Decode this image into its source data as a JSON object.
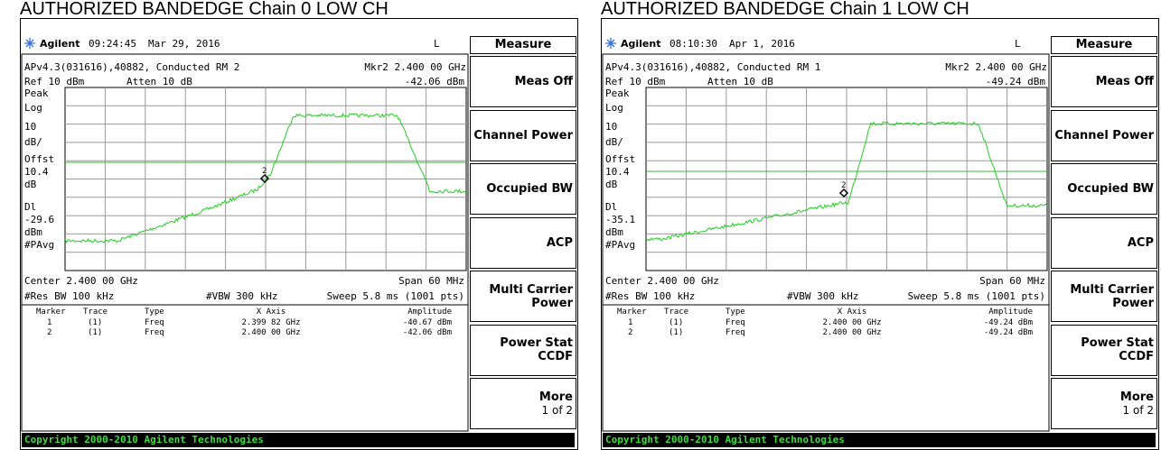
{
  "panels": [
    {
      "title": "AUTHORIZED BANDEDGE Chain 0 LOW CH",
      "header": {
        "brand": "Agilent",
        "time": "09:24:45",
        "date": "Mar 29, 2016",
        "flag": "L"
      },
      "menu_title": "Measure",
      "info": {
        "setup": "APv4.3(031616),40882, Conducted RM 2",
        "marker": "Mkr2  2.400 00 GHz",
        "ref": "Ref 10 dBm",
        "atten": "Atten 10 dB",
        "marker_amplitude": "-42.06 dBm"
      },
      "left_labels": [
        "Peak",
        "Log",
        "10",
        "dB/",
        "Offst",
        "10.4",
        "dB",
        "Dl",
        "-29.6",
        "dBm",
        "#PAvg"
      ],
      "center": "Center 2.400 00 GHz",
      "span": "Span 60 MHz",
      "res_bw": "#Res BW 100 kHz",
      "vbw": "#VBW 300 kHz",
      "sweep": "Sweep 5.8 ms (1001 pts)",
      "marker_table": {
        "columns": [
          "Marker",
          "Trace",
          "Type",
          "X Axis",
          "Amplitude"
        ],
        "rows": [
          [
            "1",
            "(1)",
            "Freq",
            "2.399 82 GHz",
            "-40.67 dBm"
          ],
          [
            "2",
            "(1)",
            "Freq",
            "2.400 00 GHz",
            "-42.06 dBm"
          ]
        ]
      },
      "softkeys": [
        [
          "Meas Off"
        ],
        [
          "Channel Power"
        ],
        [
          "Occupied BW"
        ],
        [
          "ACP"
        ],
        [
          "Multi Carrier",
          "Power"
        ],
        [
          "Power Stat",
          "CCDF"
        ],
        [
          "More",
          "1 of 2"
        ]
      ],
      "copyright": "Copyright 2000-2010 Agilent Technologies"
    },
    {
      "title": "AUTHORIZED BANDEDGE Chain 1 LOW CH",
      "header": {
        "brand": "Agilent",
        "time": "08:10:30",
        "date": "Apr 1, 2016",
        "flag": "L"
      },
      "menu_title": "Measure",
      "info": {
        "setup": "APv4.3(031616),40882, Conducted RM 1",
        "marker": "Mkr2  2.400 00 GHz",
        "ref": "Ref 10 dBm",
        "atten": "Atten 10 dB",
        "marker_amplitude": "-49.24 dBm"
      },
      "left_labels": [
        "Peak",
        "Log",
        "10",
        "dB/",
        "Offst",
        "10.4",
        "dB",
        "Dl",
        "-35.1",
        "dBm",
        "#PAvg"
      ],
      "center": "Center 2.400 00 GHz",
      "span": "Span 60 MHz",
      "res_bw": "#Res BW 100 kHz",
      "vbw": "#VBW 300 kHz",
      "sweep": "Sweep 5.8 ms (1001 pts)",
      "marker_table": {
        "columns": [
          "Marker",
          "Trace",
          "Type",
          "X Axis",
          "Amplitude"
        ],
        "rows": [
          [
            "1",
            "(1)",
            "Freq",
            "2.400 00 GHz",
            "-49.24 dBm"
          ],
          [
            "2",
            "(1)",
            "Freq",
            "2.400 00 GHz",
            "-49.24 dBm"
          ]
        ]
      },
      "softkeys": [
        [
          "Meas Off"
        ],
        [
          "Channel Power"
        ],
        [
          "Occupied BW"
        ],
        [
          "ACP"
        ],
        [
          "Multi Carrier",
          "Power"
        ],
        [
          "Power Stat",
          "CCDF"
        ],
        [
          "More",
          "1 of 2"
        ]
      ],
      "copyright": "Copyright 2000-2010 Agilent Technologies"
    }
  ]
}
